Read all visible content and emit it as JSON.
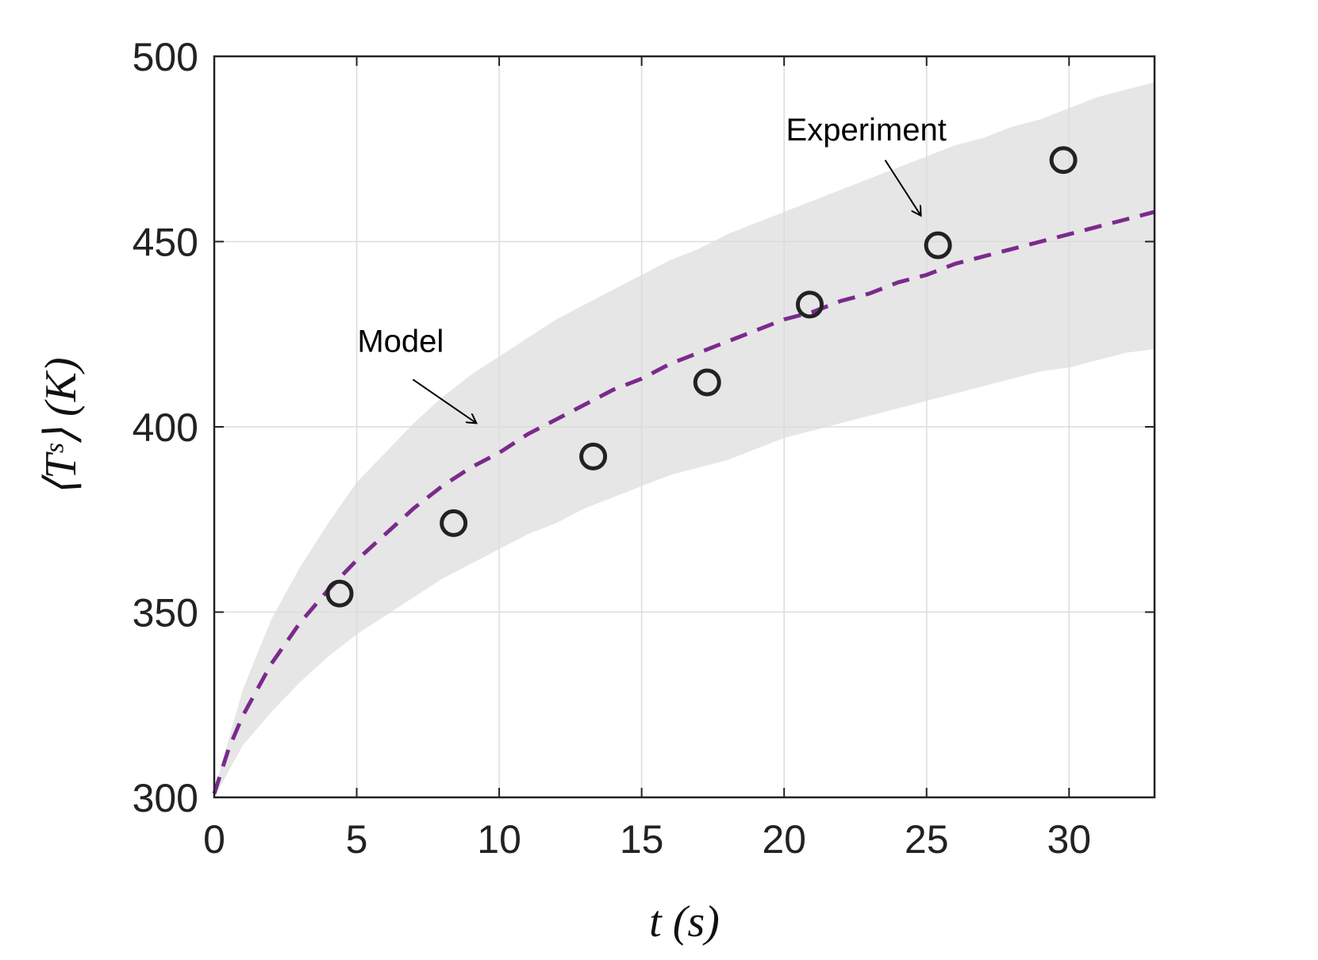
{
  "chart_data": {
    "type": "line",
    "title": "",
    "xlabel": "t (s)",
    "ylabel": "⟨Tˢ⟩ (K)",
    "xlim": [
      0,
      33
    ],
    "ylim": [
      300,
      500
    ],
    "xticks": [
      0,
      5,
      10,
      15,
      20,
      25,
      30
    ],
    "yticks": [
      300,
      350,
      400,
      450,
      500
    ],
    "xtick_labels": [
      "0",
      "5",
      "10",
      "15",
      "20",
      "25",
      "30"
    ],
    "ytick_labels": [
      "300",
      "350",
      "400",
      "450",
      "500"
    ],
    "grid": true,
    "series": [
      {
        "name": "Model",
        "style": "dashed-line",
        "color": "#7b2a8c",
        "x": [
          0,
          0.5,
          1,
          2,
          3,
          4,
          5,
          6,
          7,
          8,
          9,
          10,
          11,
          12,
          13,
          14,
          15,
          16,
          17,
          18,
          19,
          20,
          21,
          22,
          23,
          24,
          25,
          26,
          27,
          28,
          29,
          30,
          31,
          32,
          33
        ],
        "y": [
          301,
          313,
          322,
          336,
          347,
          356,
          364,
          371,
          378,
          384,
          389,
          393,
          398,
          402,
          406,
          410,
          413,
          417,
          420,
          423,
          426,
          429,
          431,
          434,
          436,
          439,
          441,
          444,
          446,
          448,
          450,
          452,
          454,
          456,
          458
        ]
      },
      {
        "name": "Experiment",
        "style": "markers",
        "color": "#222222",
        "x": [
          4.4,
          8.4,
          13.3,
          17.3,
          20.9,
          25.4,
          29.8
        ],
        "y": [
          355,
          374,
          392,
          412,
          433,
          449,
          472
        ]
      }
    ],
    "band": {
      "name": "uncertainty band",
      "color": "#e6e6e6",
      "x": [
        0,
        1,
        2,
        3,
        4,
        5,
        6,
        7,
        8,
        9,
        10,
        11,
        12,
        13,
        14,
        15,
        16,
        17,
        18,
        19,
        20,
        21,
        22,
        23,
        24,
        25,
        26,
        27,
        28,
        29,
        30,
        31,
        32,
        33
      ],
      "upper": [
        302,
        329,
        348,
        362,
        374,
        385,
        393,
        401,
        408,
        414,
        419,
        424,
        429,
        433,
        437,
        441,
        445,
        448,
        452,
        455,
        458,
        461,
        464,
        467,
        470,
        473,
        476,
        478,
        481,
        483,
        486,
        489,
        491,
        493
      ],
      "lower": [
        300,
        314,
        323,
        331,
        338,
        344,
        349,
        354,
        359,
        363,
        367,
        371,
        374,
        378,
        381,
        384,
        387,
        389,
        391,
        394,
        397,
        399,
        401,
        403,
        405,
        407,
        409,
        411,
        413,
        415,
        416,
        418,
        420,
        421
      ]
    },
    "annotations": [
      {
        "text": "Model",
        "x": 9.2,
        "y": 401,
        "points_to": "Model"
      },
      {
        "text": "Experiment",
        "x": 24.8,
        "y": 457,
        "points_to": "Experiment"
      }
    ]
  }
}
